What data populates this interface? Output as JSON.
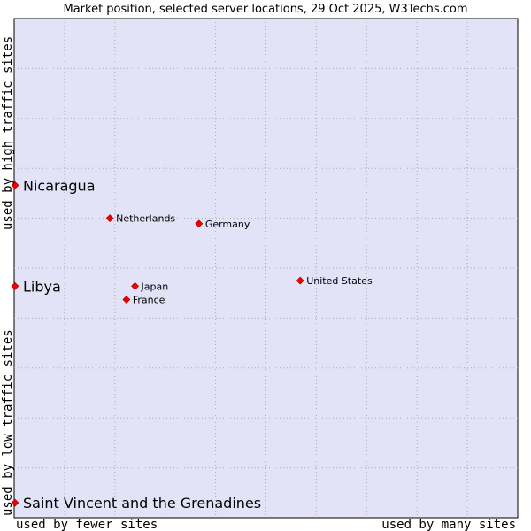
{
  "chart_data": {
    "type": "scatter",
    "title": "Market position, selected server locations, 29 Oct 2025, W3Techs.com",
    "xlabel_left": "used by fewer sites",
    "xlabel_right": "used by many sites",
    "ylabel_low": "used by low traffic sites",
    "ylabel_high": "used by high traffic sites",
    "xlim": [
      0,
      100
    ],
    "ylim": [
      0,
      100
    ],
    "grid": true,
    "point_color": "#ee0000",
    "plot_background": "#e3e3f8",
    "points": [
      {
        "label": "Nicaragua",
        "x": 0.0,
        "y": 66.6,
        "size": "large"
      },
      {
        "label": "Netherlands",
        "x": 19.0,
        "y": 60.0,
        "size": "small"
      },
      {
        "label": "Germany",
        "x": 36.7,
        "y": 58.9,
        "size": "small"
      },
      {
        "label": "United States",
        "x": 56.8,
        "y": 47.5,
        "size": "small"
      },
      {
        "label": "Libya",
        "x": 0.0,
        "y": 46.4,
        "size": "large"
      },
      {
        "label": "Japan",
        "x": 24.0,
        "y": 46.4,
        "size": "small"
      },
      {
        "label": "France",
        "x": 22.3,
        "y": 43.7,
        "size": "small"
      }
    ],
    "extra_points": [
      {
        "label": "Saint Vincent and the Grenadines",
        "x": 0.0,
        "y": 3.0,
        "size": "large"
      }
    ]
  }
}
